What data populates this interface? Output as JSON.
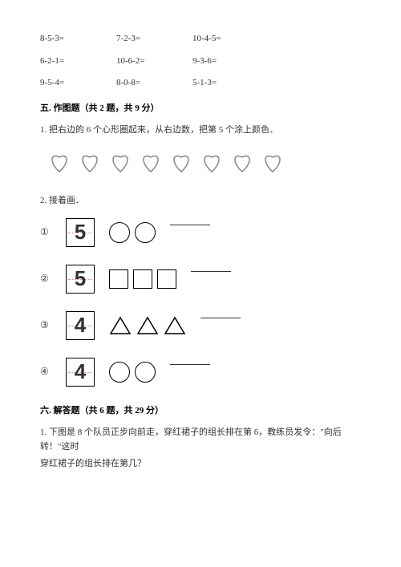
{
  "arithmetic": {
    "rows": [
      [
        "8-5-3=",
        "7-2-3=",
        "10-4-5="
      ],
      [
        "6-2-1=",
        "10-6-2=",
        "9-3-6="
      ],
      [
        "9-5-4=",
        "8-0-8=",
        "5-1-3="
      ]
    ]
  },
  "section5": {
    "heading": "五. 作图题（共 2 题，共 9 分）",
    "q1": {
      "text": "1. 把右边的 6 个心形圈起来，从右边数，把第 5 个涂上颜色．",
      "heart_count": 8,
      "heart_stroke": "#888888",
      "heart_fill": "#ffffff"
    },
    "q2": {
      "text": "2. 接着画．",
      "items": [
        {
          "label": "①",
          "number": "5",
          "shape": "circle",
          "count": 2
        },
        {
          "label": "②",
          "number": "5",
          "shape": "square",
          "count": 3
        },
        {
          "label": "③",
          "number": "4",
          "shape": "triangle",
          "count": 3
        },
        {
          "label": "④",
          "number": "4",
          "shape": "circle",
          "count": 2
        }
      ]
    }
  },
  "section6": {
    "heading": "六. 解答题（共 6 题，共 29 分）",
    "q1_line1": "1. 下图是 8 个队员正步向前走，穿红裙子的组长排在第 6，教练员发令：\"向后转！\"这时",
    "q1_line2": "穿红裙子的组长排在第几？"
  },
  "style": {
    "text_color": "#333333",
    "heading_color": "#000000",
    "shape_stroke": "#000000",
    "background": "#ffffff"
  }
}
